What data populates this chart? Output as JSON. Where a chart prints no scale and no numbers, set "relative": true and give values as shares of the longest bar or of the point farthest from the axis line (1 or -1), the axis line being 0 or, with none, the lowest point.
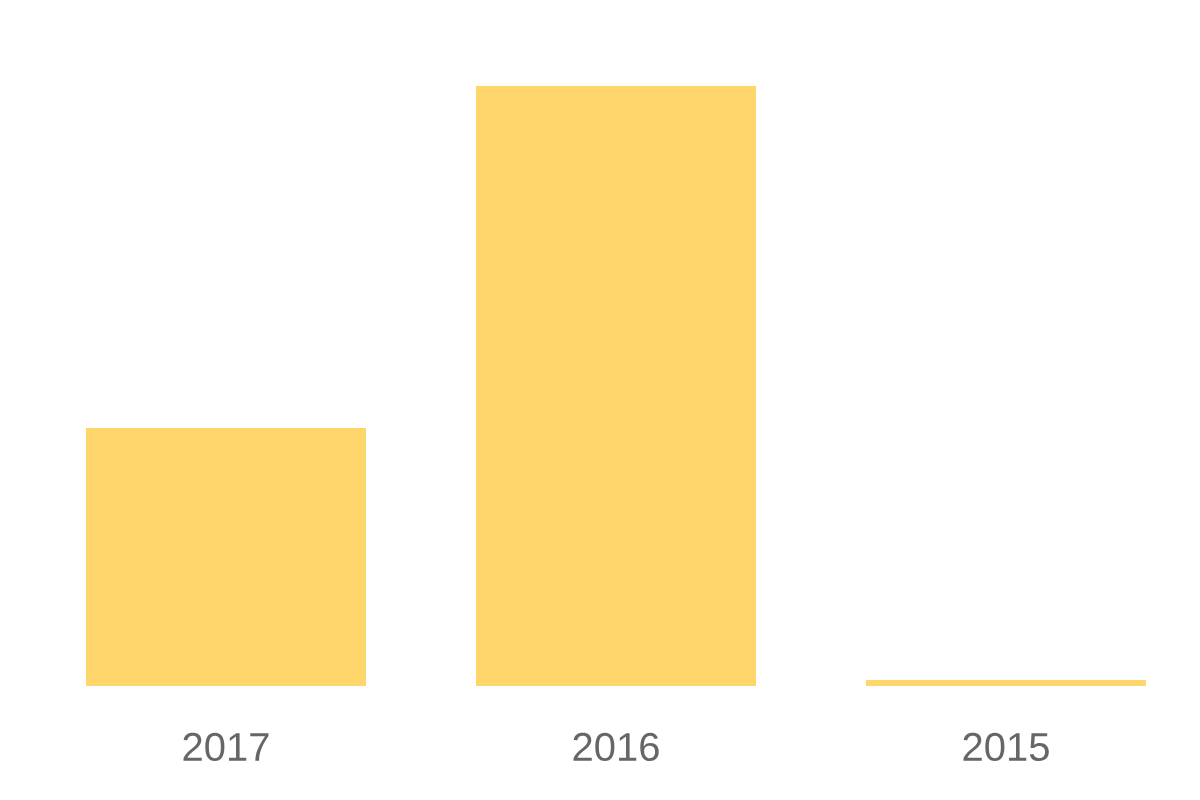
{
  "chart_data": {
    "type": "bar",
    "relative": true,
    "categories": [
      "2017",
      "2016",
      "2015"
    ],
    "values": [
      0.43,
      1,
      0.01
    ],
    "color": "#fed66b"
  }
}
